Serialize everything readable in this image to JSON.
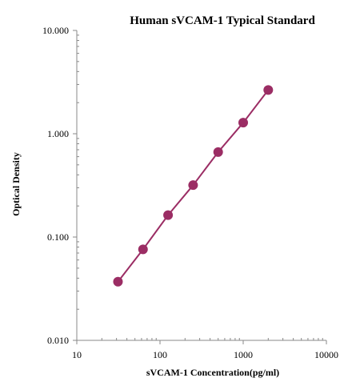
{
  "chart_data": {
    "type": "scatter",
    "title": "Human  sVCAM-1 Typical Standard",
    "xlabel": "sVCAM-1  Concentration(pg/ml)",
    "ylabel": "Optical Density",
    "xscale": "log",
    "yscale": "log",
    "xlim": [
      10,
      10000
    ],
    "ylim": [
      0.01,
      10
    ],
    "x_ticks": [
      "10",
      "100",
      "1000",
      "10000"
    ],
    "y_ticks": [
      "10.000",
      "1.000",
      "0.100",
      "0.010"
    ],
    "grid": false,
    "legend": "none",
    "series": [
      {
        "x": [
          31.25,
          62.5,
          125,
          250,
          500,
          1000,
          2000
        ],
        "y": [
          0.037,
          0.076,
          0.163,
          0.318,
          0.665,
          1.28,
          2.65
        ],
        "color": "#9b2d64",
        "line": "fit"
      }
    ]
  }
}
